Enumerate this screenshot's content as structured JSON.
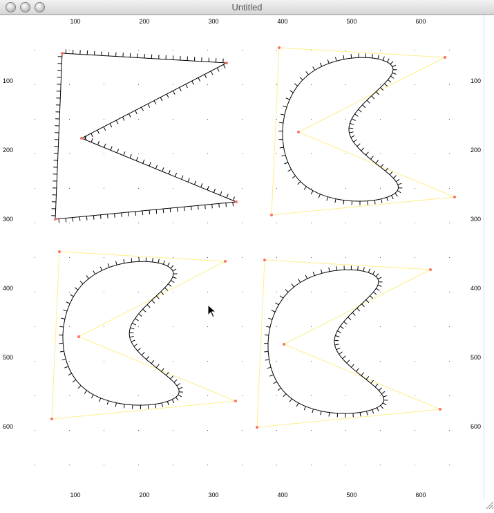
{
  "window": {
    "title": "Untitled"
  },
  "axes": {
    "x_ticks_top": [
      "100",
      "200",
      "300",
      "400",
      "500",
      "600"
    ],
    "x_ticks_bottom": [
      "100",
      "200",
      "300",
      "400",
      "500",
      "600"
    ],
    "y_ticks_left": [
      "100",
      "200",
      "300",
      "400",
      "500",
      "600"
    ],
    "y_ticks_right": [
      "100",
      "200",
      "300",
      "400",
      "500",
      "600"
    ]
  },
  "colors": {
    "control_polygon": "#ffee88",
    "control_point": "#ff6f61",
    "curve": "#000000",
    "grid_dot": "#555555"
  },
  "panels": [
    {
      "name": "polygon",
      "control_points": [
        [
          90,
          77
        ],
        [
          328,
          91
        ],
        [
          118,
          200
        ],
        [
          342,
          292
        ],
        [
          80,
          317
        ]
      ]
    },
    {
      "name": "curve-1",
      "control_points": [
        [
          404,
          69
        ],
        [
          644,
          83
        ],
        [
          432,
          191
        ],
        [
          658,
          285
        ],
        [
          393,
          311
        ]
      ]
    },
    {
      "name": "curve-2",
      "control_points": [
        [
          86,
          364
        ],
        [
          326,
          378
        ],
        [
          114,
          487
        ],
        [
          341,
          580
        ],
        [
          75,
          606
        ]
      ]
    },
    {
      "name": "curve-3",
      "control_points": [
        [
          383,
          376
        ],
        [
          623,
          390
        ],
        [
          411,
          498
        ],
        [
          637,
          592
        ],
        [
          372,
          618
        ]
      ]
    }
  ]
}
